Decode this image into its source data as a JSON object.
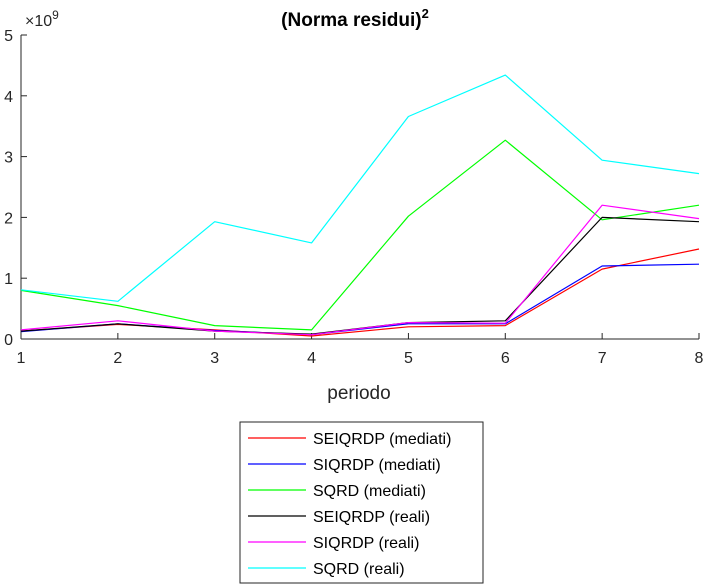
{
  "chart_data": {
    "type": "line",
    "title": "(Norma residui)",
    "title_superscript": "2",
    "xlabel": "periodo",
    "ylabel": "",
    "exponent_label": "×10",
    "exponent_power": "9",
    "x": [
      1,
      2,
      3,
      4,
      5,
      6,
      7,
      8
    ],
    "xlim": [
      1,
      8
    ],
    "ylim": [
      0,
      5
    ],
    "x_ticks": [
      "1",
      "2",
      "3",
      "4",
      "5",
      "6",
      "7",
      "8"
    ],
    "y_ticks": [
      "0",
      "1",
      "2",
      "3",
      "4",
      "5"
    ],
    "grid": false,
    "legend_position": "below",
    "series": [
      {
        "name": "SEIQRDP (mediati)",
        "color": "#ff0000",
        "values": [
          0.13,
          0.24,
          0.15,
          0.05,
          0.2,
          0.22,
          1.15,
          1.48
        ]
      },
      {
        "name": "SIQRDP (mediati)",
        "color": "#0000ff",
        "values": [
          0.12,
          0.25,
          0.14,
          0.07,
          0.25,
          0.25,
          1.2,
          1.23
        ]
      },
      {
        "name": "SQRD (mediati)",
        "color": "#00ff00",
        "values": [
          0.8,
          0.55,
          0.22,
          0.15,
          2.02,
          3.27,
          1.96,
          2.2
        ]
      },
      {
        "name": "SEIQRDP (reali)",
        "color": "#000000",
        "values": [
          0.13,
          0.25,
          0.13,
          0.08,
          0.27,
          0.3,
          2.0,
          1.93
        ]
      },
      {
        "name": "SIQRDP (reali)",
        "color": "#ff00ff",
        "values": [
          0.15,
          0.3,
          0.13,
          0.07,
          0.27,
          0.26,
          2.2,
          1.98
        ]
      },
      {
        "name": "SQRD (reali)",
        "color": "#00ffff",
        "values": [
          0.81,
          0.62,
          1.93,
          1.58,
          3.66,
          4.34,
          2.94,
          2.72
        ]
      }
    ]
  }
}
